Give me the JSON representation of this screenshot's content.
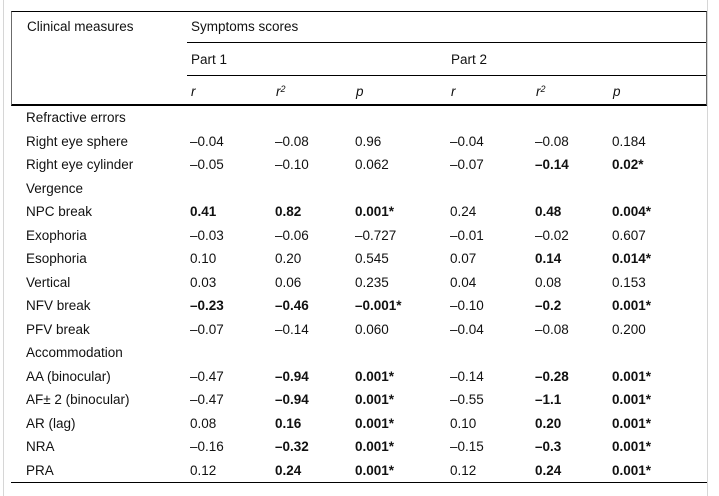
{
  "table": {
    "col0_header": "Clinical measures",
    "group_header": "Symptoms scores",
    "part_headers": [
      "Part 1",
      "Part 2"
    ],
    "stat_headers": [
      {
        "base": "r",
        "sup": ""
      },
      {
        "base": "r",
        "sup": "2"
      },
      {
        "base": "p",
        "sup": ""
      }
    ],
    "rows": [
      {
        "type": "section",
        "label": "Refractive errors"
      },
      {
        "type": "data",
        "label": "Right eye sphere",
        "values": [
          {
            "v": "–0.04",
            "b": false
          },
          {
            "v": "–0.08",
            "b": false
          },
          {
            "v": "0.96",
            "b": false
          },
          {
            "v": "–0.04",
            "b": false
          },
          {
            "v": "–0.08",
            "b": false
          },
          {
            "v": "0.184",
            "b": false
          }
        ]
      },
      {
        "type": "data",
        "label": "Right eye cylinder",
        "values": [
          {
            "v": "–0.05",
            "b": false
          },
          {
            "v": "–0.10",
            "b": false
          },
          {
            "v": "0.062",
            "b": false
          },
          {
            "v": "–0.07",
            "b": false
          },
          {
            "v": "–0.14",
            "b": true
          },
          {
            "v": "0.02*",
            "b": true
          }
        ]
      },
      {
        "type": "section",
        "label": "Vergence"
      },
      {
        "type": "data",
        "label": "NPC break",
        "values": [
          {
            "v": "0.41",
            "b": true
          },
          {
            "v": "0.82",
            "b": true
          },
          {
            "v": "0.001*",
            "b": true
          },
          {
            "v": "0.24",
            "b": false
          },
          {
            "v": "0.48",
            "b": true
          },
          {
            "v": "0.004*",
            "b": true
          }
        ]
      },
      {
        "type": "data",
        "label": "Exophoria",
        "values": [
          {
            "v": "–0.03",
            "b": false
          },
          {
            "v": "–0.06",
            "b": false
          },
          {
            "v": "–0.727",
            "b": false
          },
          {
            "v": "–0.01",
            "b": false
          },
          {
            "v": "–0.02",
            "b": false
          },
          {
            "v": "0.607",
            "b": false
          }
        ]
      },
      {
        "type": "data",
        "label": "Esophoria",
        "values": [
          {
            "v": "0.10",
            "b": false
          },
          {
            "v": "0.20",
            "b": false
          },
          {
            "v": "0.545",
            "b": false
          },
          {
            "v": "0.07",
            "b": false
          },
          {
            "v": "0.14",
            "b": true
          },
          {
            "v": "0.014*",
            "b": true
          }
        ]
      },
      {
        "type": "data",
        "label": "Vertical",
        "values": [
          {
            "v": "0.03",
            "b": false
          },
          {
            "v": "0.06",
            "b": false
          },
          {
            "v": "0.235",
            "b": false
          },
          {
            "v": "0.04",
            "b": false
          },
          {
            "v": "0.08",
            "b": false
          },
          {
            "v": "0.153",
            "b": false
          }
        ]
      },
      {
        "type": "data",
        "label": "NFV break",
        "values": [
          {
            "v": "–0.23",
            "b": true
          },
          {
            "v": "–0.46",
            "b": true
          },
          {
            "v": "–0.001*",
            "b": true
          },
          {
            "v": "–0.10",
            "b": false
          },
          {
            "v": "–0.2",
            "b": true
          },
          {
            "v": "0.001*",
            "b": true
          }
        ]
      },
      {
        "type": "data",
        "label": "PFV break",
        "values": [
          {
            "v": "–0.07",
            "b": false
          },
          {
            "v": "–0.14",
            "b": false
          },
          {
            "v": "0.060",
            "b": false
          },
          {
            "v": "–0.04",
            "b": false
          },
          {
            "v": "–0.08",
            "b": false
          },
          {
            "v": "0.200",
            "b": false
          }
        ]
      },
      {
        "type": "section",
        "label": "Accommodation"
      },
      {
        "type": "data",
        "label": "AA (binocular)",
        "values": [
          {
            "v": "–0.47",
            "b": false
          },
          {
            "v": "–0.94",
            "b": true
          },
          {
            "v": "0.001*",
            "b": true
          },
          {
            "v": "–0.14",
            "b": false
          },
          {
            "v": "–0.28",
            "b": true
          },
          {
            "v": "0.001*",
            "b": true
          }
        ]
      },
      {
        "type": "data",
        "label": "AF± 2 (binocular)",
        "values": [
          {
            "v": "–0.47",
            "b": false
          },
          {
            "v": "–0.94",
            "b": true
          },
          {
            "v": "0.001*",
            "b": true
          },
          {
            "v": "–0.55",
            "b": false
          },
          {
            "v": "–1.1",
            "b": true
          },
          {
            "v": "0.001*",
            "b": true
          }
        ]
      },
      {
        "type": "data",
        "label": "AR (lag)",
        "values": [
          {
            "v": "0.08",
            "b": false
          },
          {
            "v": "0.16",
            "b": true
          },
          {
            "v": "0.001*",
            "b": true
          },
          {
            "v": "0.10",
            "b": false
          },
          {
            "v": "0.20",
            "b": true
          },
          {
            "v": "0.001*",
            "b": true
          }
        ]
      },
      {
        "type": "data",
        "label": "NRA",
        "values": [
          {
            "v": "–0.16",
            "b": false
          },
          {
            "v": "–0.32",
            "b": true
          },
          {
            "v": "0.001*",
            "b": true
          },
          {
            "v": "–0.15",
            "b": false
          },
          {
            "v": "–0.3",
            "b": true
          },
          {
            "v": "0.001*",
            "b": true
          }
        ]
      },
      {
        "type": "data",
        "label": "PRA",
        "values": [
          {
            "v": "0.12",
            "b": false
          },
          {
            "v": "0.24",
            "b": true
          },
          {
            "v": "0.001*",
            "b": true
          },
          {
            "v": "0.12",
            "b": false
          },
          {
            "v": "0.24",
            "b": true
          },
          {
            "v": "0.001*",
            "b": true
          }
        ]
      }
    ]
  }
}
